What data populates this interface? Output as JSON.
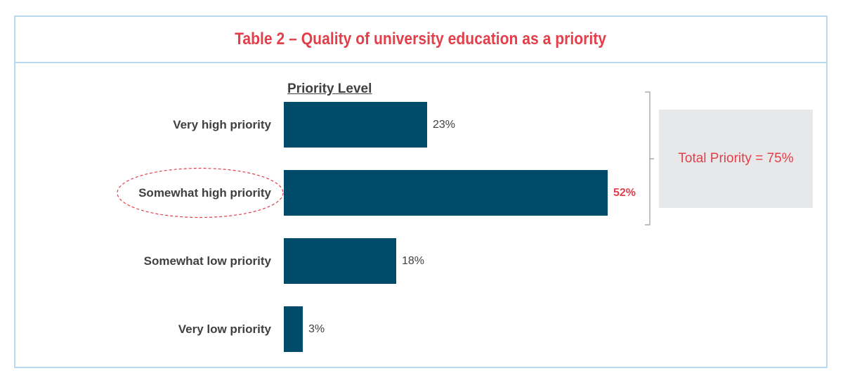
{
  "title": "Table 2 – Quality of university education as a priority",
  "legend_title": "Priority Level",
  "summary": "Total Priority = 75%",
  "colors": {
    "bar": "#004a6a",
    "highlight": "#e23f4a",
    "frame": "#b8d9ee",
    "summary_bg": "#e7e8ea"
  },
  "chart_data": {
    "type": "bar",
    "orientation": "horizontal",
    "title": "Table 2 – Quality of university education as a priority",
    "legend_title": "Priority Level",
    "categories": [
      "Very high priority",
      "Somewhat high priority",
      "Somewhat low priority",
      "Very low priority"
    ],
    "values": [
      23,
      52,
      18,
      3
    ],
    "value_labels": [
      "23%",
      "52%",
      "18%",
      "3%"
    ],
    "highlighted_category": "Somewhat high priority",
    "xlim": [
      0,
      52
    ],
    "grid": false,
    "annotation": "Total Priority = 75%"
  }
}
